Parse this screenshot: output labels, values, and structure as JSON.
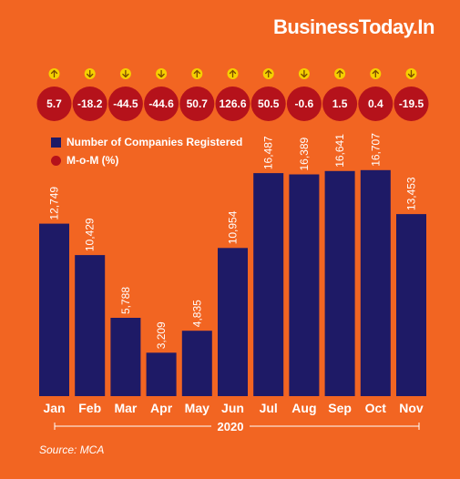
{
  "brand": "BusinessToday.In",
  "source": "Source: MCA",
  "legend": {
    "bars": "Number of Companies Registered",
    "mom": "M-o-M (%)"
  },
  "colors": {
    "background": "#f26522",
    "bar": "#1e1a66",
    "mom_circle": "#b5121b",
    "arrow_circle": "#f5d000"
  },
  "chart_data": {
    "type": "bar",
    "categories": [
      "Jan",
      "Feb",
      "Mar",
      "Apr",
      "May",
      "Jun",
      "Jul",
      "Aug",
      "Sep",
      "Oct",
      "Nov"
    ],
    "x_group_label": "2020",
    "series": [
      {
        "name": "Number of Companies Registered",
        "values": [
          12749,
          10429,
          5788,
          3209,
          4835,
          10954,
          16487,
          16389,
          16641,
          16707,
          13453
        ],
        "labels": [
          "12,749",
          "10,429",
          "5,788",
          "3,209",
          "4,835",
          "10,954",
          "16,487",
          "16,389",
          "16,641",
          "16,707",
          "13,453"
        ]
      },
      {
        "name": "M-o-M (%)",
        "values": [
          5.7,
          -18.2,
          -44.5,
          -44.6,
          50.7,
          126.6,
          50.5,
          -0.6,
          1.5,
          0.4,
          -19.5
        ],
        "labels": [
          "5.7",
          "-18.2",
          "-44.5",
          "-44.6",
          "50.7",
          "126.6",
          "50.5",
          "-0.6",
          "1.5",
          "0.4",
          "-19.5"
        ],
        "direction": [
          "up",
          "down",
          "down",
          "down",
          "up",
          "up",
          "up",
          "down",
          "up",
          "up",
          "down"
        ]
      }
    ],
    "ylim": [
      0,
      17500
    ],
    "grid": false,
    "legend_position": "top-left"
  }
}
